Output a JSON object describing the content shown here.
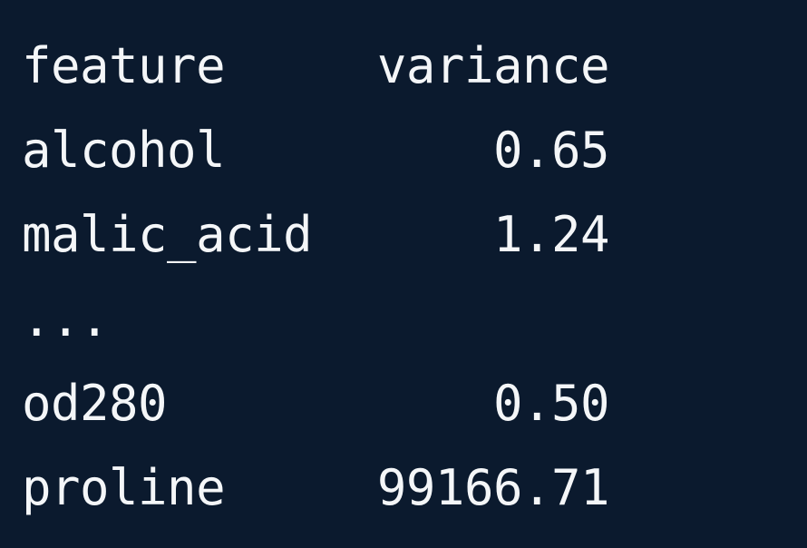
{
  "table": {
    "header": {
      "feature": "feature",
      "variance": "variance"
    },
    "rows": [
      {
        "feature": "alcohol",
        "variance": "0.65"
      },
      {
        "feature": "malic_acid",
        "variance": "1.24"
      },
      {
        "feature": "...",
        "variance": ""
      },
      {
        "feature": "od280",
        "variance": "0.50"
      },
      {
        "feature": "proline",
        "variance": "99166.71"
      }
    ]
  },
  "colors": {
    "background": "#0b1a2e",
    "text": "#f4f6f8"
  }
}
